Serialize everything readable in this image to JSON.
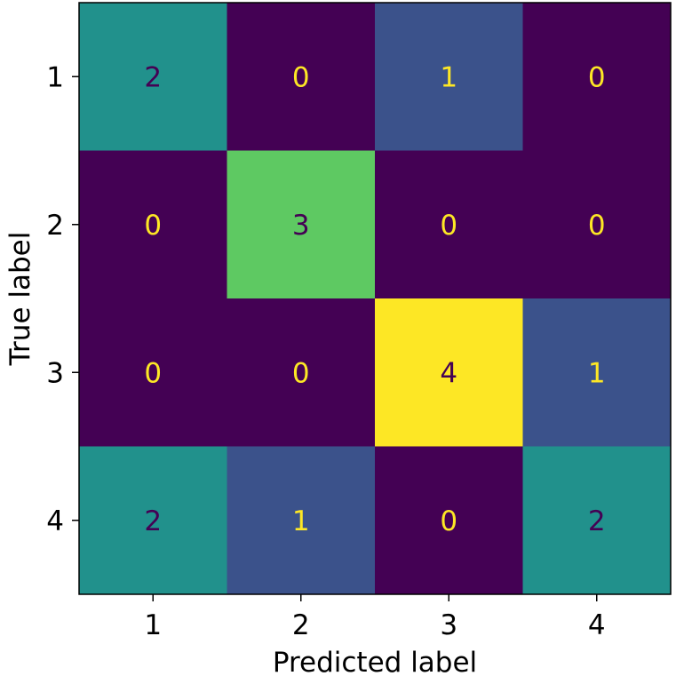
{
  "chart_data": {
    "type": "heatmap",
    "title": "",
    "xlabel": "Predicted label",
    "ylabel": "True label",
    "x_categories": [
      "1",
      "2",
      "3",
      "4"
    ],
    "y_categories": [
      "1",
      "2",
      "3",
      "4"
    ],
    "values": [
      [
        2,
        0,
        1,
        0
      ],
      [
        0,
        3,
        0,
        0
      ],
      [
        0,
        0,
        4,
        1
      ],
      [
        2,
        1,
        0,
        2
      ]
    ],
    "value_range": [
      0,
      4
    ],
    "colormap": "viridis",
    "colors": {
      "0": "#440154",
      "1": "#3b528b",
      "2": "#21918c",
      "3": "#5ec962",
      "4": "#fde725"
    },
    "text_colors": {
      "low": "#fde725",
      "high": "#440154"
    },
    "grid": false,
    "legend": "none"
  }
}
